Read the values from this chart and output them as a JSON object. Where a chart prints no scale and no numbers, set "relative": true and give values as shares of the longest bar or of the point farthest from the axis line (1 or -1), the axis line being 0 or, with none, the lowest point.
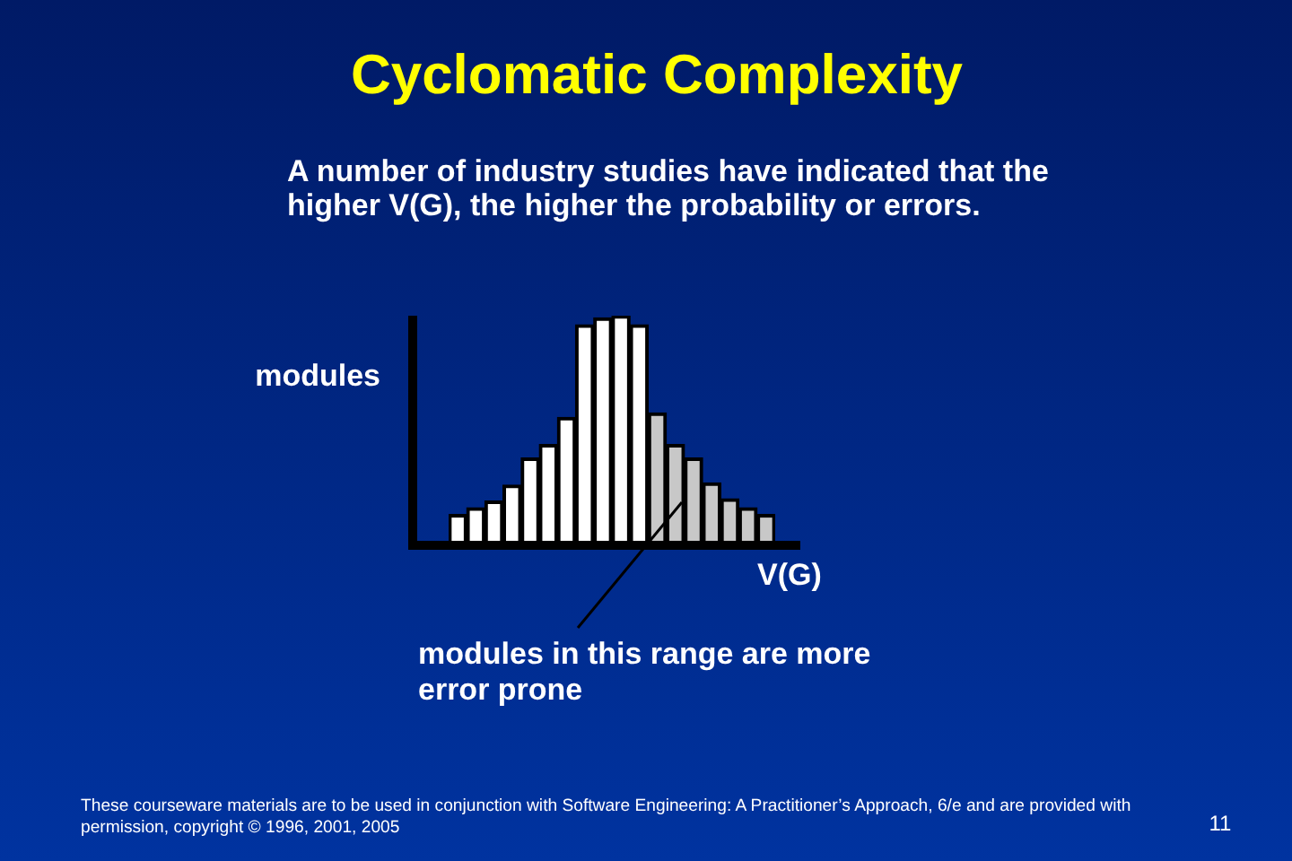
{
  "chart_data": {
    "type": "bar",
    "title": "Cyclomatic Complexity",
    "subtitle": "A number of industry studies have indicated that the higher V(G), the higher the probability or errors.",
    "xlabel": "V(G)",
    "ylabel": "modules",
    "relative": true,
    "categories": [
      null,
      null,
      null,
      null,
      null,
      null,
      null,
      null,
      null,
      null,
      null,
      null,
      null,
      null,
      null,
      null,
      null,
      null
    ],
    "values": [
      0.12,
      0.15,
      0.18,
      0.25,
      0.37,
      0.43,
      0.55,
      0.96,
      0.99,
      1,
      0.96,
      0.57,
      0.43,
      0.37,
      0.26,
      0.19,
      0.15,
      0.12
    ],
    "colors": [
      "#ffffff",
      "#ffffff",
      "#ffffff",
      "#ffffff",
      "#ffffff",
      "#ffffff",
      "#ffffff",
      "#ffffff",
      "#ffffff",
      "#ffffff",
      "#ffffff",
      "#c8c8c8",
      "#c8c8c8",
      "#c8c8c8",
      "#c8c8c8",
      "#c8c8c8",
      "#c8c8c8",
      "#c8c8c8"
    ],
    "annotations": [
      "modules in this range are more error prone",
      "These courseware materials are to be used in conjunction with Software Engineering: A Practitioner’s Approach, 6/e and are provided with permission, copyright © 1996, 2001, 2005",
      "11"
    ]
  }
}
